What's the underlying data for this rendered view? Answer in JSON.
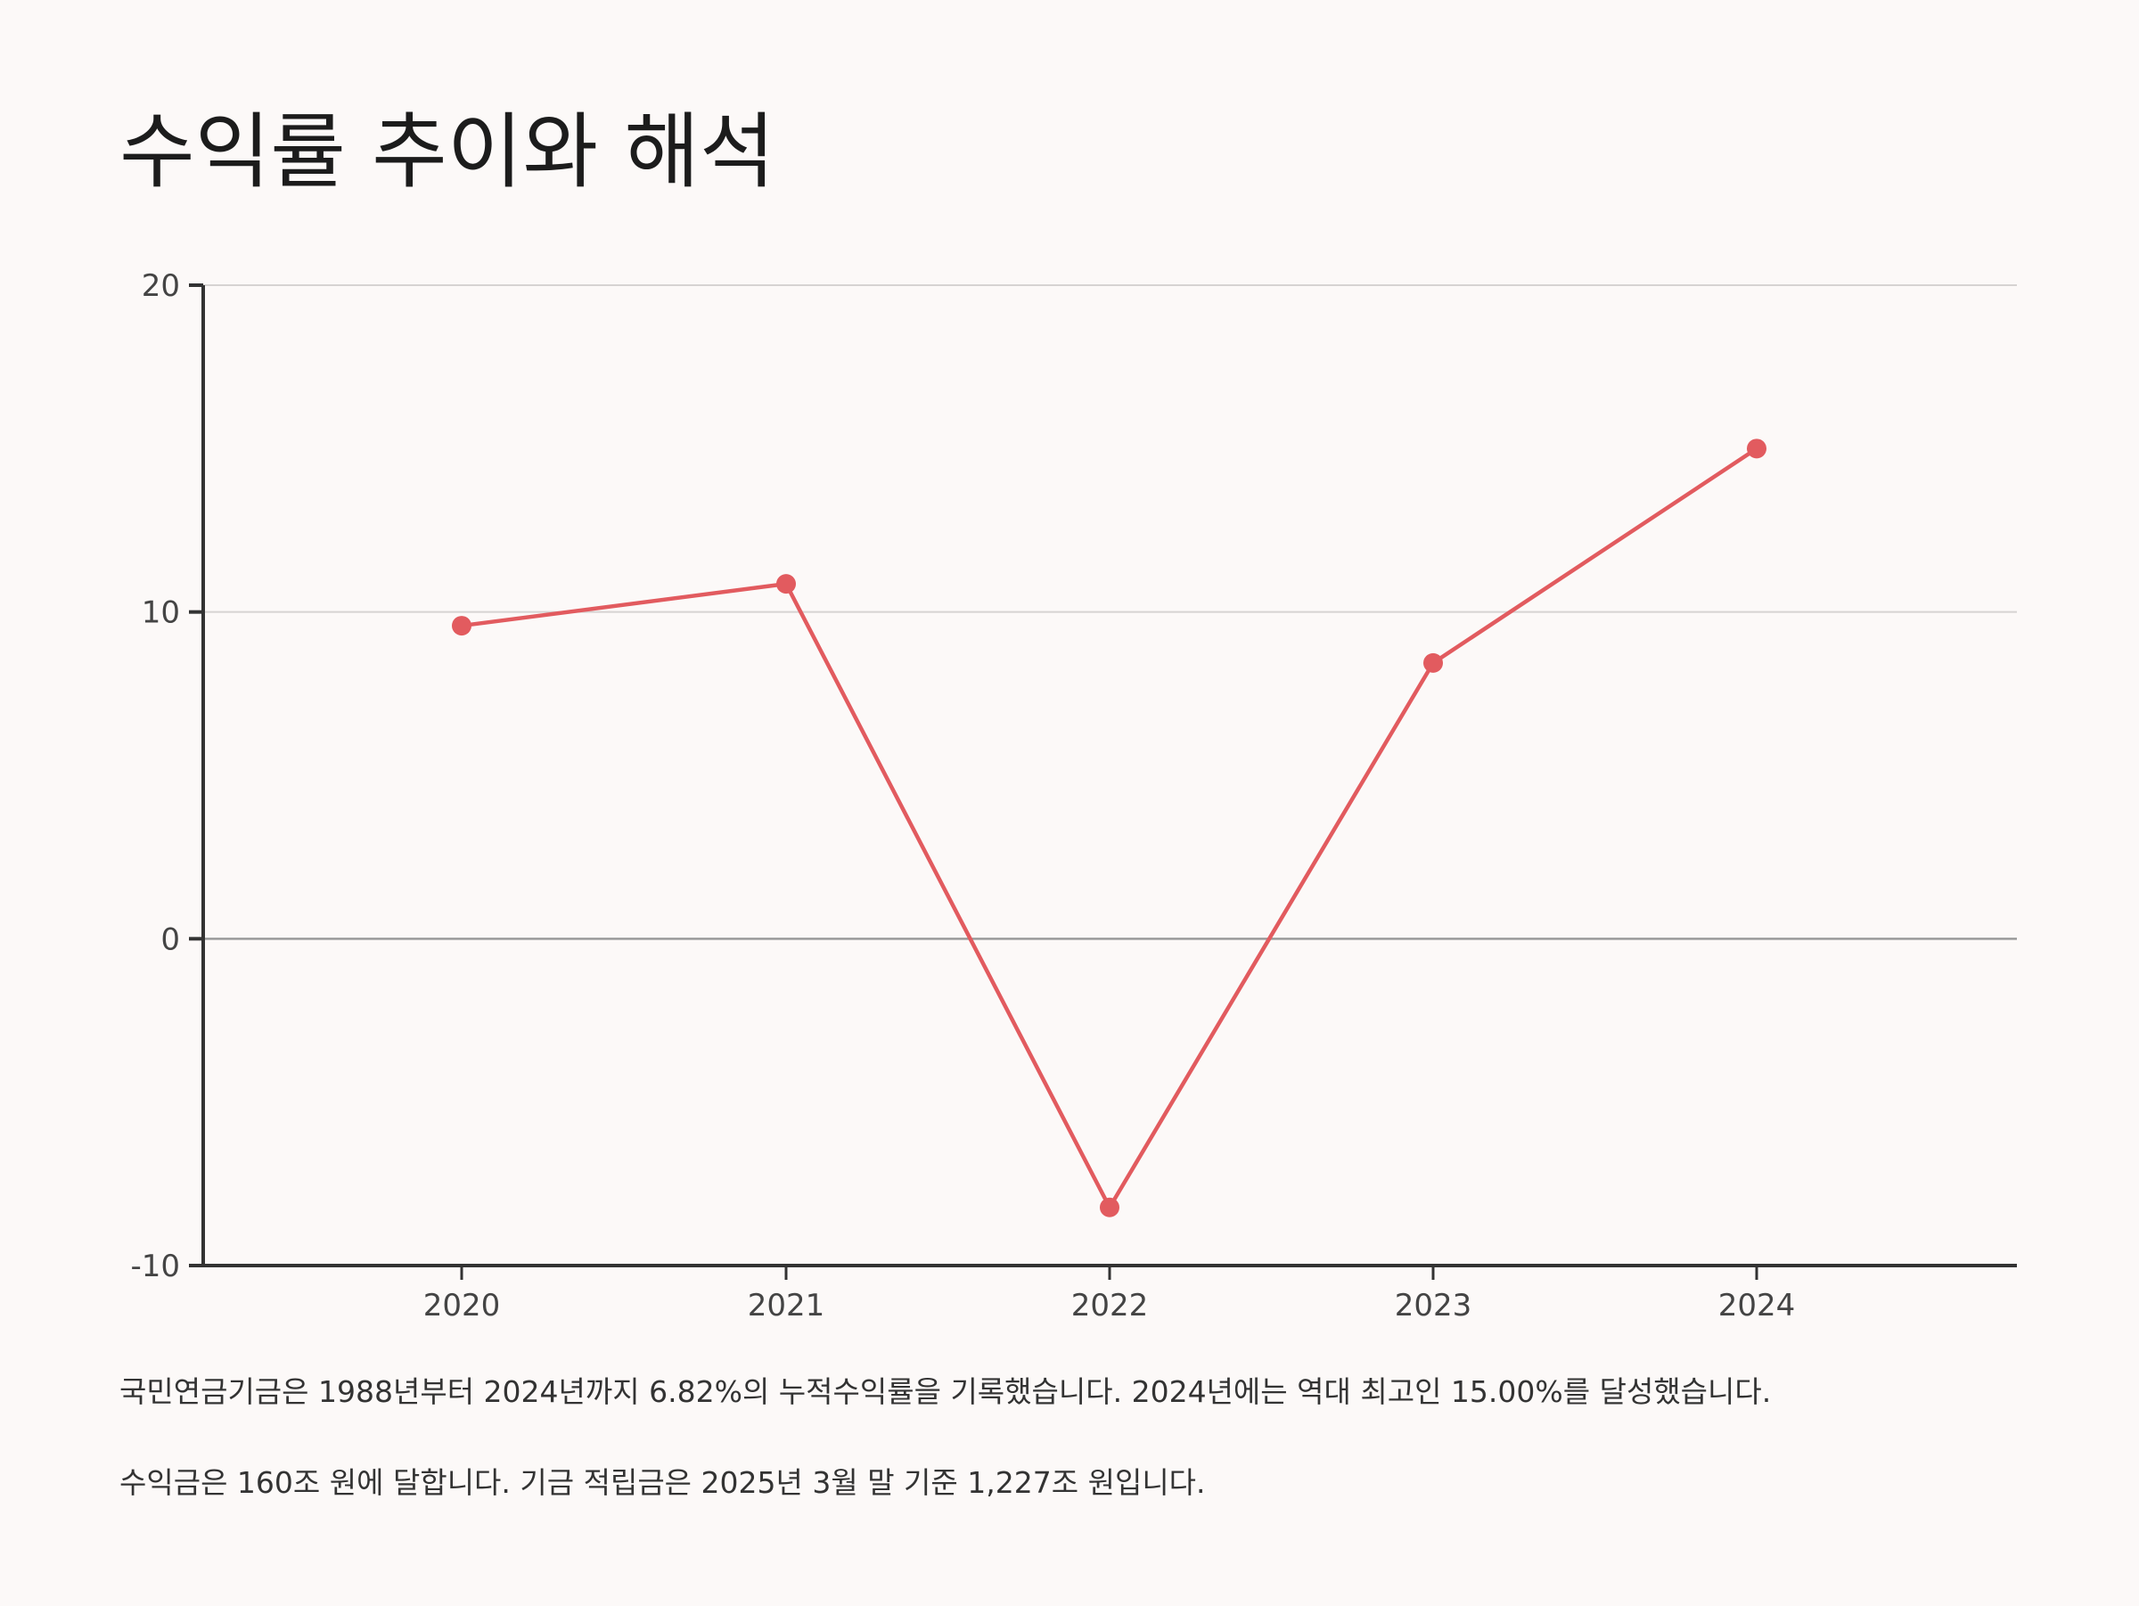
{
  "title": "수익률 추이와 해석",
  "colors": {
    "background": "#fcf9f8",
    "series": "#e25b5f",
    "axis": "#333333",
    "grid": "#d6d3d2",
    "zero_line": "#9a9a9a"
  },
  "chart_data": {
    "type": "line",
    "x": [
      "2020",
      "2021",
      "2022",
      "2023",
      "2024"
    ],
    "series": [
      {
        "values": [
          9.58,
          10.86,
          -8.22,
          8.44,
          15.0
        ]
      }
    ],
    "ylim": [
      -10,
      20
    ],
    "yticks": [
      "20",
      "10",
      "0",
      "-10"
    ],
    "xlabel": "",
    "ylabel": "",
    "grid": true
  },
  "paragraphs": [
    "국민연금기금은 1988년부터 2024년까지 6.82%의 누적수익률을 기록했습니다. 2024년에는 역대 최고인 15.00%를 달성했습니다.",
    "수익금은 160조 원에 달합니다. 기금 적립금은 2025년 3월 말 기준 1,227조 원입니다."
  ]
}
